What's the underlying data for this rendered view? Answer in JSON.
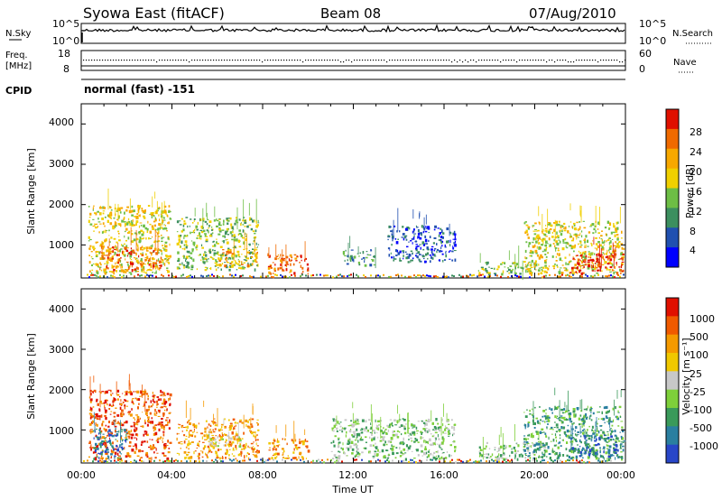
{
  "header": {
    "station": "Syowa East (fitACF)",
    "beam": "Beam 08",
    "date": "07/Aug/2010"
  },
  "top_panels": {
    "nsky_label": "N.Sky",
    "nsearch_label": "N.Search",
    "scale_hi": "10^5",
    "scale_lo": "10^0",
    "freq_label_1": "Freq.",
    "freq_label_2": "[MHz]",
    "freq_ticks": [
      "18",
      "8"
    ],
    "nave_label": "Nave",
    "nave_ticks": [
      "60",
      "0"
    ],
    "cpid_label": "CPID",
    "cpid_value": "normal (fast) -151"
  },
  "x_axis": {
    "label": "Time UT",
    "ticks": [
      "00:00",
      "04:00",
      "08:00",
      "12:00",
      "16:00",
      "20:00",
      "00:00"
    ]
  },
  "power_panel": {
    "ylabel": "Slant Range [km]",
    "yticks": [
      "4000",
      "3000",
      "2000",
      "1000"
    ],
    "colorbar_label": "Power [dB]",
    "colorbar_ticks": [
      "28",
      "24",
      "20",
      "16",
      "12",
      "8",
      "4"
    ],
    "colors": [
      "#0000ff",
      "#2050b0",
      "#3c8f5f",
      "#6dbe45",
      "#f0d000",
      "#f7a800",
      "#f06a00",
      "#e01000"
    ]
  },
  "velocity_panel": {
    "ylabel": "Slant Range [km]",
    "yticks": [
      "4000",
      "3000",
      "2000",
      "1000"
    ],
    "colorbar_label": "Velocity [m s⁻¹]",
    "colorbar_ticks": [
      "1000",
      "500",
      "100",
      "25",
      "-25",
      "-100",
      "-500",
      "-1000"
    ],
    "colors": [
      "#2846c8",
      "#2a7fa0",
      "#3a9a5a",
      "#7ed03a",
      "#c8c8c8",
      "#f0c800",
      "#f59a00",
      "#f05a00",
      "#e01000"
    ]
  },
  "chart_data": {
    "type": "heatmap",
    "x_range_hours": [
      0,
      24
    ],
    "y_range_km": [
      180,
      4500
    ],
    "description_of_regions": "scatter patches of radar backscatter",
    "power_patches": [
      {
        "t0": 0.3,
        "t1": 3.9,
        "r0": 300,
        "r1": 2000,
        "level": 4
      },
      {
        "t0": 0.8,
        "t1": 3.5,
        "r0": 400,
        "r1": 1000,
        "level": 6
      },
      {
        "t0": 4.2,
        "t1": 7.8,
        "r0": 400,
        "r1": 1700,
        "level": 3
      },
      {
        "t0": 6.0,
        "t1": 7.8,
        "r0": 500,
        "r1": 900,
        "level": 5
      },
      {
        "t0": 8.2,
        "t1": 10.0,
        "r0": 300,
        "r1": 800,
        "level": 6
      },
      {
        "t0": 11.5,
        "t1": 13.0,
        "r0": 500,
        "r1": 900,
        "level": 2
      },
      {
        "t0": 13.5,
        "t1": 16.5,
        "r0": 600,
        "r1": 1500,
        "level": 1
      },
      {
        "t0": 17.5,
        "t1": 20.0,
        "r0": 300,
        "r1": 600,
        "level": 3
      },
      {
        "t0": 19.5,
        "t1": 23.9,
        "r0": 300,
        "r1": 1600,
        "level": 4
      },
      {
        "t0": 21.5,
        "t1": 23.9,
        "r0": 300,
        "r1": 800,
        "level": 7
      }
    ],
    "velocity_patches": [
      {
        "t0": 0.3,
        "t1": 3.9,
        "r0": 300,
        "r1": 2000,
        "level": 7
      },
      {
        "t0": 0.5,
        "t1": 2.0,
        "r0": 300,
        "r1": 1100,
        "level": 1
      },
      {
        "t0": 4.2,
        "t1": 7.8,
        "r0": 300,
        "r1": 1300,
        "level": 6
      },
      {
        "t0": 5.5,
        "t1": 7.0,
        "r0": 600,
        "r1": 900,
        "level": 4
      },
      {
        "t0": 8.2,
        "t1": 10.0,
        "r0": 300,
        "r1": 800,
        "level": 6
      },
      {
        "t0": 11.0,
        "t1": 16.5,
        "r0": 300,
        "r1": 1300,
        "level": 3
      },
      {
        "t0": 17.5,
        "t1": 20.5,
        "r0": 300,
        "r1": 700,
        "level": 3
      },
      {
        "t0": 19.5,
        "t1": 23.9,
        "r0": 300,
        "r1": 1600,
        "level": 2
      },
      {
        "t0": 21.5,
        "t1": 23.9,
        "r0": 300,
        "r1": 900,
        "level": 1
      }
    ]
  }
}
